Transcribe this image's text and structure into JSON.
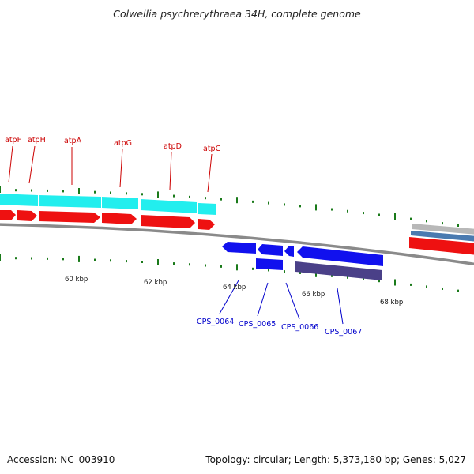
{
  "title": "Colwellia psychrerythraea 34H, complete genome",
  "footer": {
    "accession": "Accession: NC_003910",
    "summary": "Topology: circular; Length: 5,373,180 bp; Genes: 5,027"
  },
  "colors": {
    "cds_forward": "#ee1111",
    "cds_reverse": "#1111ee",
    "gene_forward": "#22eeee",
    "gene_reverse": "#4a4088",
    "ticks": "#1a7a1a",
    "backbone": "#8a8a8a",
    "label_forward": "#cc0000",
    "label_reverse": "#0000cc"
  },
  "upper_genes": [
    {
      "label": "atpF"
    },
    {
      "label": "atpH"
    },
    {
      "label": "atpA"
    },
    {
      "label": "atpG"
    },
    {
      "label": "atpD"
    },
    {
      "label": "atpC"
    }
  ],
  "lower_genes": [
    {
      "label": "CPS_0064"
    },
    {
      "label": "CPS_0065"
    },
    {
      "label": "CPS_0066"
    },
    {
      "label": "CPS_0067"
    }
  ],
  "scale_labels": [
    "60 kbp",
    "62 kbp",
    "64 kbp",
    "66 kbp",
    "68 kbp"
  ]
}
